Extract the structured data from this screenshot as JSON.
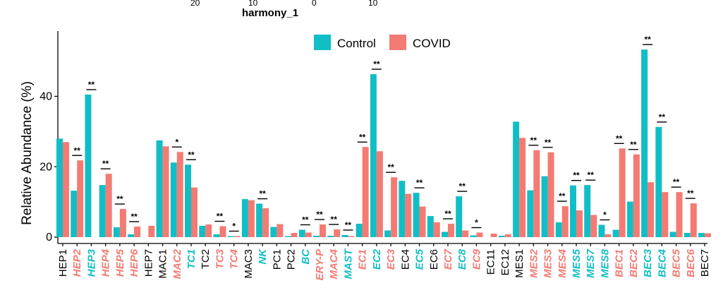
{
  "header": {
    "partial_axis_labels": [
      "20",
      "10",
      "0",
      "10"
    ],
    "title": "harmony_1"
  },
  "colors": {
    "control": "#12BEC6",
    "covid": "#F37B73",
    "plain": "#000000"
  },
  "chart_data": {
    "type": "bar",
    "title": "",
    "xlabel": "",
    "ylabel": "Relative Abundance (%)",
    "ylim": [
      0,
      57
    ],
    "yticks": [
      0,
      20,
      40
    ],
    "grid": false,
    "legend": {
      "position": "top",
      "entries": [
        "Control",
        "COVID"
      ]
    },
    "categories": [
      "HEP1",
      "HEP2",
      "HEP3",
      "HEP4",
      "HEP5",
      "HEP6",
      "HEP7",
      "MAC1",
      "MAC2",
      "TC1",
      "TC2",
      "TC3",
      "TC4",
      "MAC3",
      "NK",
      "PC1",
      "PC2",
      "BC",
      "ERY-P",
      "MAC4",
      "MAST",
      "EC1",
      "EC2",
      "EC3",
      "EC4",
      "EC5",
      "EC6",
      "EC7",
      "EC8",
      "EC9",
      "EC11",
      "EC12",
      "MES1",
      "MES2",
      "MES3",
      "MES4",
      "MES5",
      "MES7",
      "MES8",
      "BEC1",
      "BEC2",
      "BEC3",
      "BEC4",
      "BEC5",
      "BEC6",
      "BEC7"
    ],
    "category_styles": [
      "plain",
      "covid",
      "control",
      "covid",
      "covid",
      "covid",
      "plain",
      "plain",
      "covid",
      "control",
      "plain",
      "covid",
      "covid",
      "plain",
      "control",
      "plain",
      "plain",
      "control",
      "covid",
      "covid",
      "control",
      "covid",
      "control",
      "covid",
      "plain",
      "control",
      "plain",
      "covid",
      "control",
      "covid",
      "plain",
      "plain",
      "plain",
      "covid",
      "covid",
      "covid",
      "control",
      "control",
      "control",
      "covid",
      "covid",
      "control",
      "control",
      "covid",
      "covid",
      "plain"
    ],
    "significance": [
      "",
      "**",
      "**",
      "**",
      "**",
      "**",
      "",
      "",
      "*",
      "**",
      "",
      "**",
      "*",
      "",
      "**",
      "",
      "",
      "**",
      "**",
      "**",
      "**",
      "**",
      "**",
      "**",
      "",
      "**",
      "",
      "**",
      "**",
      "*",
      "",
      "",
      "",
      "**",
      "**",
      "**",
      "**",
      "**",
      "*",
      "**",
      "**",
      "**",
      "**",
      "**",
      "**",
      ""
    ],
    "series": [
      {
        "name": "Control",
        "values": [
          28,
          13.2,
          40.5,
          14.8,
          2.8,
          0.8,
          0,
          27.5,
          21.2,
          20.6,
          3.2,
          0.8,
          0.3,
          10.8,
          9.5,
          2.9,
          0.3,
          2.1,
          0.4,
          0.4,
          0.6,
          3.8,
          46.3,
          1.9,
          16,
          12.6,
          6,
          1.5,
          11.6,
          0.5,
          0,
          0.4,
          32.8,
          13.3,
          17.3,
          4.2,
          14.7,
          14.8,
          3.5,
          2.1,
          10.1,
          53.3,
          31.3,
          1.5,
          1.2,
          1.2
        ]
      },
      {
        "name": "COVID",
        "values": [
          27,
          21.8,
          0,
          18,
          8,
          3,
          3.2,
          25.8,
          24.2,
          14.1,
          3.6,
          3.1,
          0.3,
          10.5,
          8.2,
          3.7,
          1.2,
          1.3,
          3.6,
          2.2,
          0.3,
          25.6,
          24.4,
          17,
          12.3,
          8.7,
          4.2,
          3.8,
          1.9,
          1.3,
          1,
          0.8,
          28.2,
          24.7,
          24.1,
          8.8,
          7.6,
          6.3,
          0.8,
          25.2,
          23.5,
          15.6,
          12.8,
          12.8,
          9.6,
          1.1
        ]
      }
    ]
  }
}
